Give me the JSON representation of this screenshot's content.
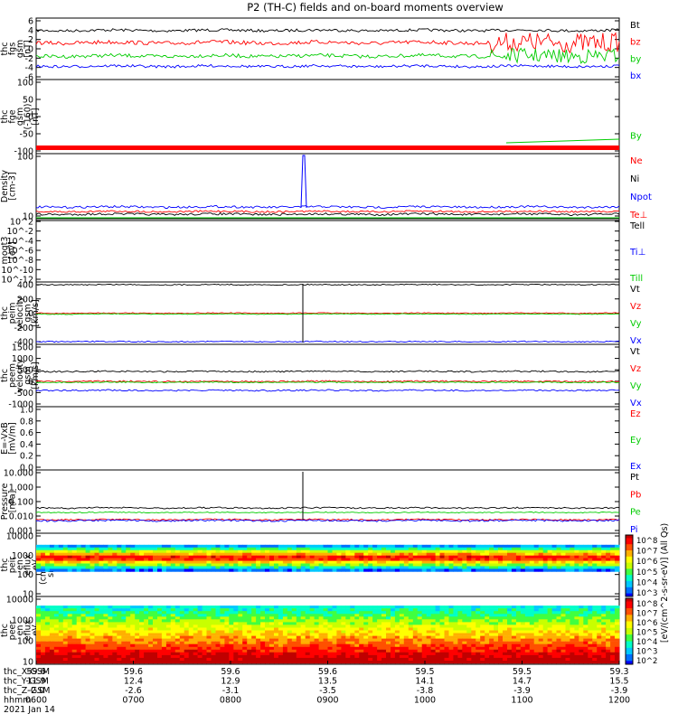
{
  "title": "P2 (TH-C) fields and on-board moments overview",
  "colors": {
    "black": "#000000",
    "red": "#ff0000",
    "green": "#00cc00",
    "blue": "#0000ff"
  },
  "chart_data": [
    {
      "type": "line",
      "ylabel": [
        "thc",
        "fgs",
        "gsm",
        "[nT]"
      ],
      "yticks": [
        "6",
        "4",
        "2",
        "0",
        "-2",
        "-4",
        "-6"
      ],
      "ylim": [
        -6,
        6
      ],
      "series": [
        {
          "name": "Bt",
          "color": "black",
          "level": 3.5
        },
        {
          "name": "bz",
          "color": "red",
          "level": 1.2
        },
        {
          "name": "by",
          "color": "green",
          "level": -1.4
        },
        {
          "name": "bx",
          "color": "blue",
          "level": -3.4
        }
      ]
    },
    {
      "type": "line",
      "ylabel": [
        "thc",
        "fge",
        "gsm",
        "(-160)",
        "[nT]"
      ],
      "yticks": [
        "100",
        "50",
        "0",
        "-50",
        "-100"
      ],
      "ylim": [
        -150,
        100
      ],
      "series": [
        {
          "name": "By",
          "color": "green",
          "level": -140
        }
      ]
    },
    {
      "type": "line",
      "ylabel": [
        "Density",
        "[cm-3]"
      ],
      "yticks": [
        "100",
        "10"
      ],
      "log": true,
      "series": [
        {
          "name": "Ne",
          "color": "red",
          "level": 6
        },
        {
          "name": "Ni",
          "color": "black",
          "level": 4.5
        },
        {
          "name": "Npot",
          "color": "blue",
          "level": 9
        },
        {
          "name": "Te⊥",
          "color": "red",
          "level": 5
        }
      ]
    },
    {
      "type": "line",
      "ylabel": [
        "moqt3",
        "[eV]"
      ],
      "yticks": [
        "10^2",
        "10^-2",
        "10^-4",
        "10^-6",
        "10^-8",
        "10^-10",
        "10^-12"
      ],
      "series": [
        {
          "name": "Tell",
          "color": "black"
        },
        {
          "name": "Ti⊥",
          "color": "blue"
        },
        {
          "name": "Till",
          "color": "green"
        }
      ]
    },
    {
      "type": "line",
      "ylabel": [
        "thc",
        "peim",
        "velocity",
        "gsm",
        "[km/s]"
      ],
      "yticks": [
        "400",
        "200",
        "0",
        "-200",
        "-400"
      ],
      "ylim": [
        -400,
        400
      ],
      "series": [
        {
          "name": "Vt",
          "color": "black",
          "level": 400
        },
        {
          "name": "Vz",
          "color": "red",
          "level": 0
        },
        {
          "name": "Vy",
          "color": "green",
          "level": 0
        },
        {
          "name": "Vx",
          "color": "blue",
          "level": -400
        }
      ]
    },
    {
      "type": "line",
      "ylabel": [
        "thc",
        "peem",
        "velocity",
        "gsm",
        "[km/s]"
      ],
      "yticks": [
        "1500",
        "1000",
        "500",
        "0",
        "-500",
        "-1000"
      ],
      "ylim": [
        -1000,
        1500
      ],
      "series": [
        {
          "name": "Vt",
          "color": "black",
          "level": 450
        },
        {
          "name": "Vz",
          "color": "red",
          "level": 0
        },
        {
          "name": "Vy",
          "color": "green",
          "level": 0
        },
        {
          "name": "Vx",
          "color": "blue",
          "level": -450
        }
      ]
    },
    {
      "type": "line",
      "ylabel": [
        "E=-VxB",
        "[mV/m]"
      ],
      "yticks": [
        "1.0",
        "0.8",
        "0.6",
        "0.4",
        "0.2",
        "0.0"
      ],
      "ylim": [
        0,
        1
      ],
      "series": [
        {
          "name": "Ez",
          "color": "red"
        },
        {
          "name": "Ey",
          "color": "green"
        },
        {
          "name": "Ex",
          "color": "blue"
        }
      ]
    },
    {
      "type": "line",
      "ylabel": [
        "Pressure",
        "[nPa]"
      ],
      "yticks": [
        "10.000",
        "1.000",
        "0.100",
        "0.010",
        "0.001"
      ],
      "log": true,
      "series": [
        {
          "name": "Pt",
          "color": "black",
          "level": 0.045
        },
        {
          "name": "Pb",
          "color": "red",
          "level": 0.008
        },
        {
          "name": "Pe",
          "color": "green",
          "level": 0.025
        },
        {
          "name": "Pi",
          "color": "blue",
          "level": 0.009
        }
      ]
    },
    {
      "type": "heatmap",
      "ylabel": [
        "thc",
        "peir",
        "en",
        "eflux",
        "eV",
        "(cm^2-s-",
        "sr-eV)"
      ],
      "yticks": [
        "10000",
        "1000",
        "100",
        "10"
      ],
      "log": true
    },
    {
      "type": "heatmap",
      "ylabel": [
        "thc",
        "peer",
        "en",
        "eflux",
        "eV",
        "(cm^2-s-",
        "sr-eV)"
      ],
      "yticks": [
        "10000",
        "1000",
        "100",
        "10"
      ],
      "log": true
    }
  ],
  "colorbar": {
    "label": "[eV/(cm^2-s-sr-eV)] (All Qs)",
    "ticks1": [
      "10^8",
      "10^7",
      "10^6",
      "10^5",
      "10^4",
      "10^3"
    ],
    "ticks2": [
      "10^8",
      "10^7",
      "10^6",
      "10^5",
      "10^4",
      "10^3",
      "10^2"
    ]
  },
  "xaxis": {
    "rows": [
      {
        "label": "thc_X-GSM",
        "values": [
          "59.6",
          "59.6",
          "59.6",
          "59.6",
          "59.5",
          "59.5",
          "59.3"
        ]
      },
      {
        "label": "thc_Y-GSM",
        "values": [
          "11.9",
          "12.4",
          "12.9",
          "13.5",
          "14.1",
          "14.7",
          "15.5"
        ]
      },
      {
        "label": "thc_Z-GSM",
        "values": [
          "-2.0",
          "-2.6",
          "-3.1",
          "-3.5",
          "-3.8",
          "-3.9",
          "-3.9"
        ]
      },
      {
        "label": "hhmm",
        "values": [
          "0600",
          "0700",
          "0800",
          "0900",
          "1000",
          "1100",
          "1200"
        ]
      }
    ],
    "date": "2021 Jan 14"
  }
}
